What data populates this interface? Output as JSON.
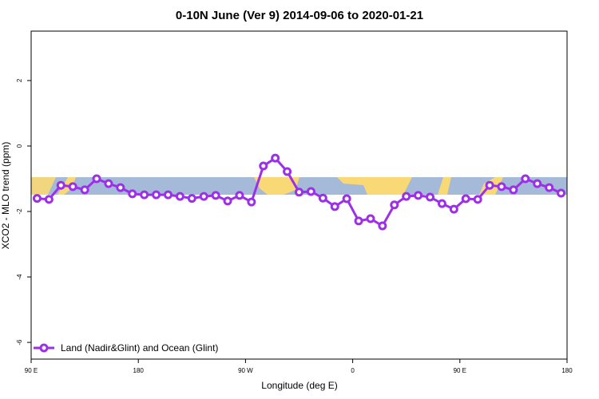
{
  "chart_data": {
    "type": "line",
    "title": "0-10N June (Ver 9)   2014-09-06 to 2020-01-21",
    "x_label": "Longitude (deg E)",
    "y_label": "XCO2 - MLO trend (ppm)",
    "x": [
      95,
      105,
      115,
      125,
      135,
      145,
      155,
      165,
      175,
      185,
      195,
      205,
      215,
      225,
      235,
      245,
      255,
      265,
      275,
      285,
      295,
      305,
      315,
      325,
      335,
      345,
      355,
      365,
      375,
      385,
      395,
      405,
      415,
      425,
      435,
      445,
      455,
      465,
      475,
      485,
      495,
      505,
      515,
      525,
      535
    ],
    "series": [
      {
        "name": "Land (Nadir&Glint) and Ocean (Glint)",
        "color": "#9b30e8",
        "values": [
          -1.6,
          -1.63,
          -1.2,
          -1.24,
          -1.34,
          -1.0,
          -1.15,
          -1.27,
          -1.46,
          -1.49,
          -1.49,
          -1.49,
          -1.54,
          -1.6,
          -1.54,
          -1.51,
          -1.68,
          -1.51,
          -1.71,
          -0.61,
          -0.37,
          -0.78,
          -1.41,
          -1.39,
          -1.59,
          -1.85,
          -1.61,
          -2.29,
          -2.22,
          -2.44,
          -1.8,
          -1.54,
          -1.51,
          -1.56,
          -1.76,
          -1.93,
          -1.61,
          -1.63,
          -1.2,
          -1.24,
          -1.34,
          -1.0,
          -1.15,
          -1.27,
          -1.44
        ]
      }
    ],
    "xlim": [
      90,
      540
    ],
    "xticks": [
      {
        "value": 90,
        "label": "90 E"
      },
      180,
      {
        "value": 270,
        "label": "90 W"
      },
      {
        "value": 360,
        "label": "0"
      },
      {
        "value": 450,
        "label": "90 E"
      },
      {
        "value": 540,
        "label": "180"
      }
    ],
    "ylim": [
      -6.51,
      3.51
    ],
    "yticks": [
      2,
      0,
      -2,
      -4,
      -6
    ],
    "legend": "bottom-left"
  }
}
